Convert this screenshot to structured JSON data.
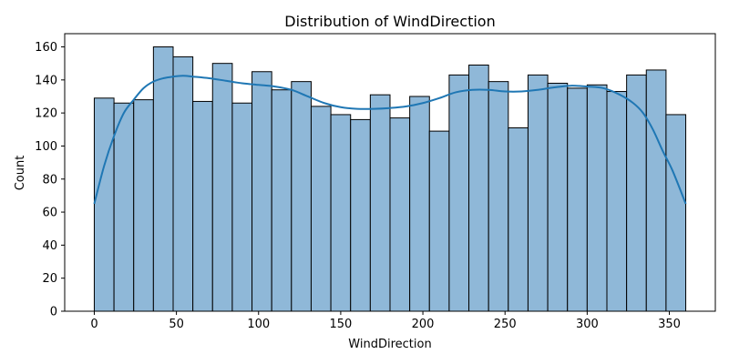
{
  "chart_data": {
    "type": "bar",
    "subtype": "histogram-with-kde",
    "title": "Distribution of WindDirection",
    "xlabel": "WindDirection",
    "ylabel": "Count",
    "xlim": [
      -18,
      378
    ],
    "ylim": [
      0,
      168
    ],
    "x_ticks": [
      0,
      50,
      100,
      150,
      200,
      250,
      300,
      350
    ],
    "y_ticks": [
      0,
      20,
      40,
      60,
      80,
      100,
      120,
      140,
      160
    ],
    "bin_start": 0,
    "bin_width": 12,
    "values": [
      129,
      126,
      128,
      160,
      154,
      127,
      150,
      126,
      145,
      134,
      139,
      124,
      119,
      116,
      131,
      117,
      130,
      109,
      143,
      149,
      139,
      111,
      143,
      138,
      135,
      137,
      133,
      143,
      146,
      119
    ],
    "kde": {
      "x": [
        0,
        6,
        12,
        18,
        24,
        30,
        36,
        42,
        48,
        54,
        60,
        70,
        80,
        90,
        100,
        110,
        120,
        130,
        140,
        150,
        160,
        170,
        180,
        190,
        200,
        210,
        220,
        230,
        240,
        250,
        260,
        270,
        280,
        290,
        300,
        310,
        320,
        328,
        334,
        340,
        346,
        352,
        360
      ],
      "y": [
        65,
        88,
        106,
        120,
        128,
        135,
        139,
        141,
        142,
        142.5,
        142,
        141,
        139.5,
        138,
        137,
        136,
        134,
        130,
        126,
        123.5,
        122.5,
        122.5,
        123,
        124,
        126,
        129,
        132.5,
        134,
        134,
        133,
        133,
        134,
        135.5,
        136.5,
        136,
        135,
        131,
        126,
        120,
        110,
        97,
        85,
        65
      ]
    },
    "colors": {
      "bar_fill": "#8fb8d8",
      "bar_edge": "#000000",
      "kde_line": "#1f77b4"
    },
    "grid": false,
    "legend": "none"
  }
}
